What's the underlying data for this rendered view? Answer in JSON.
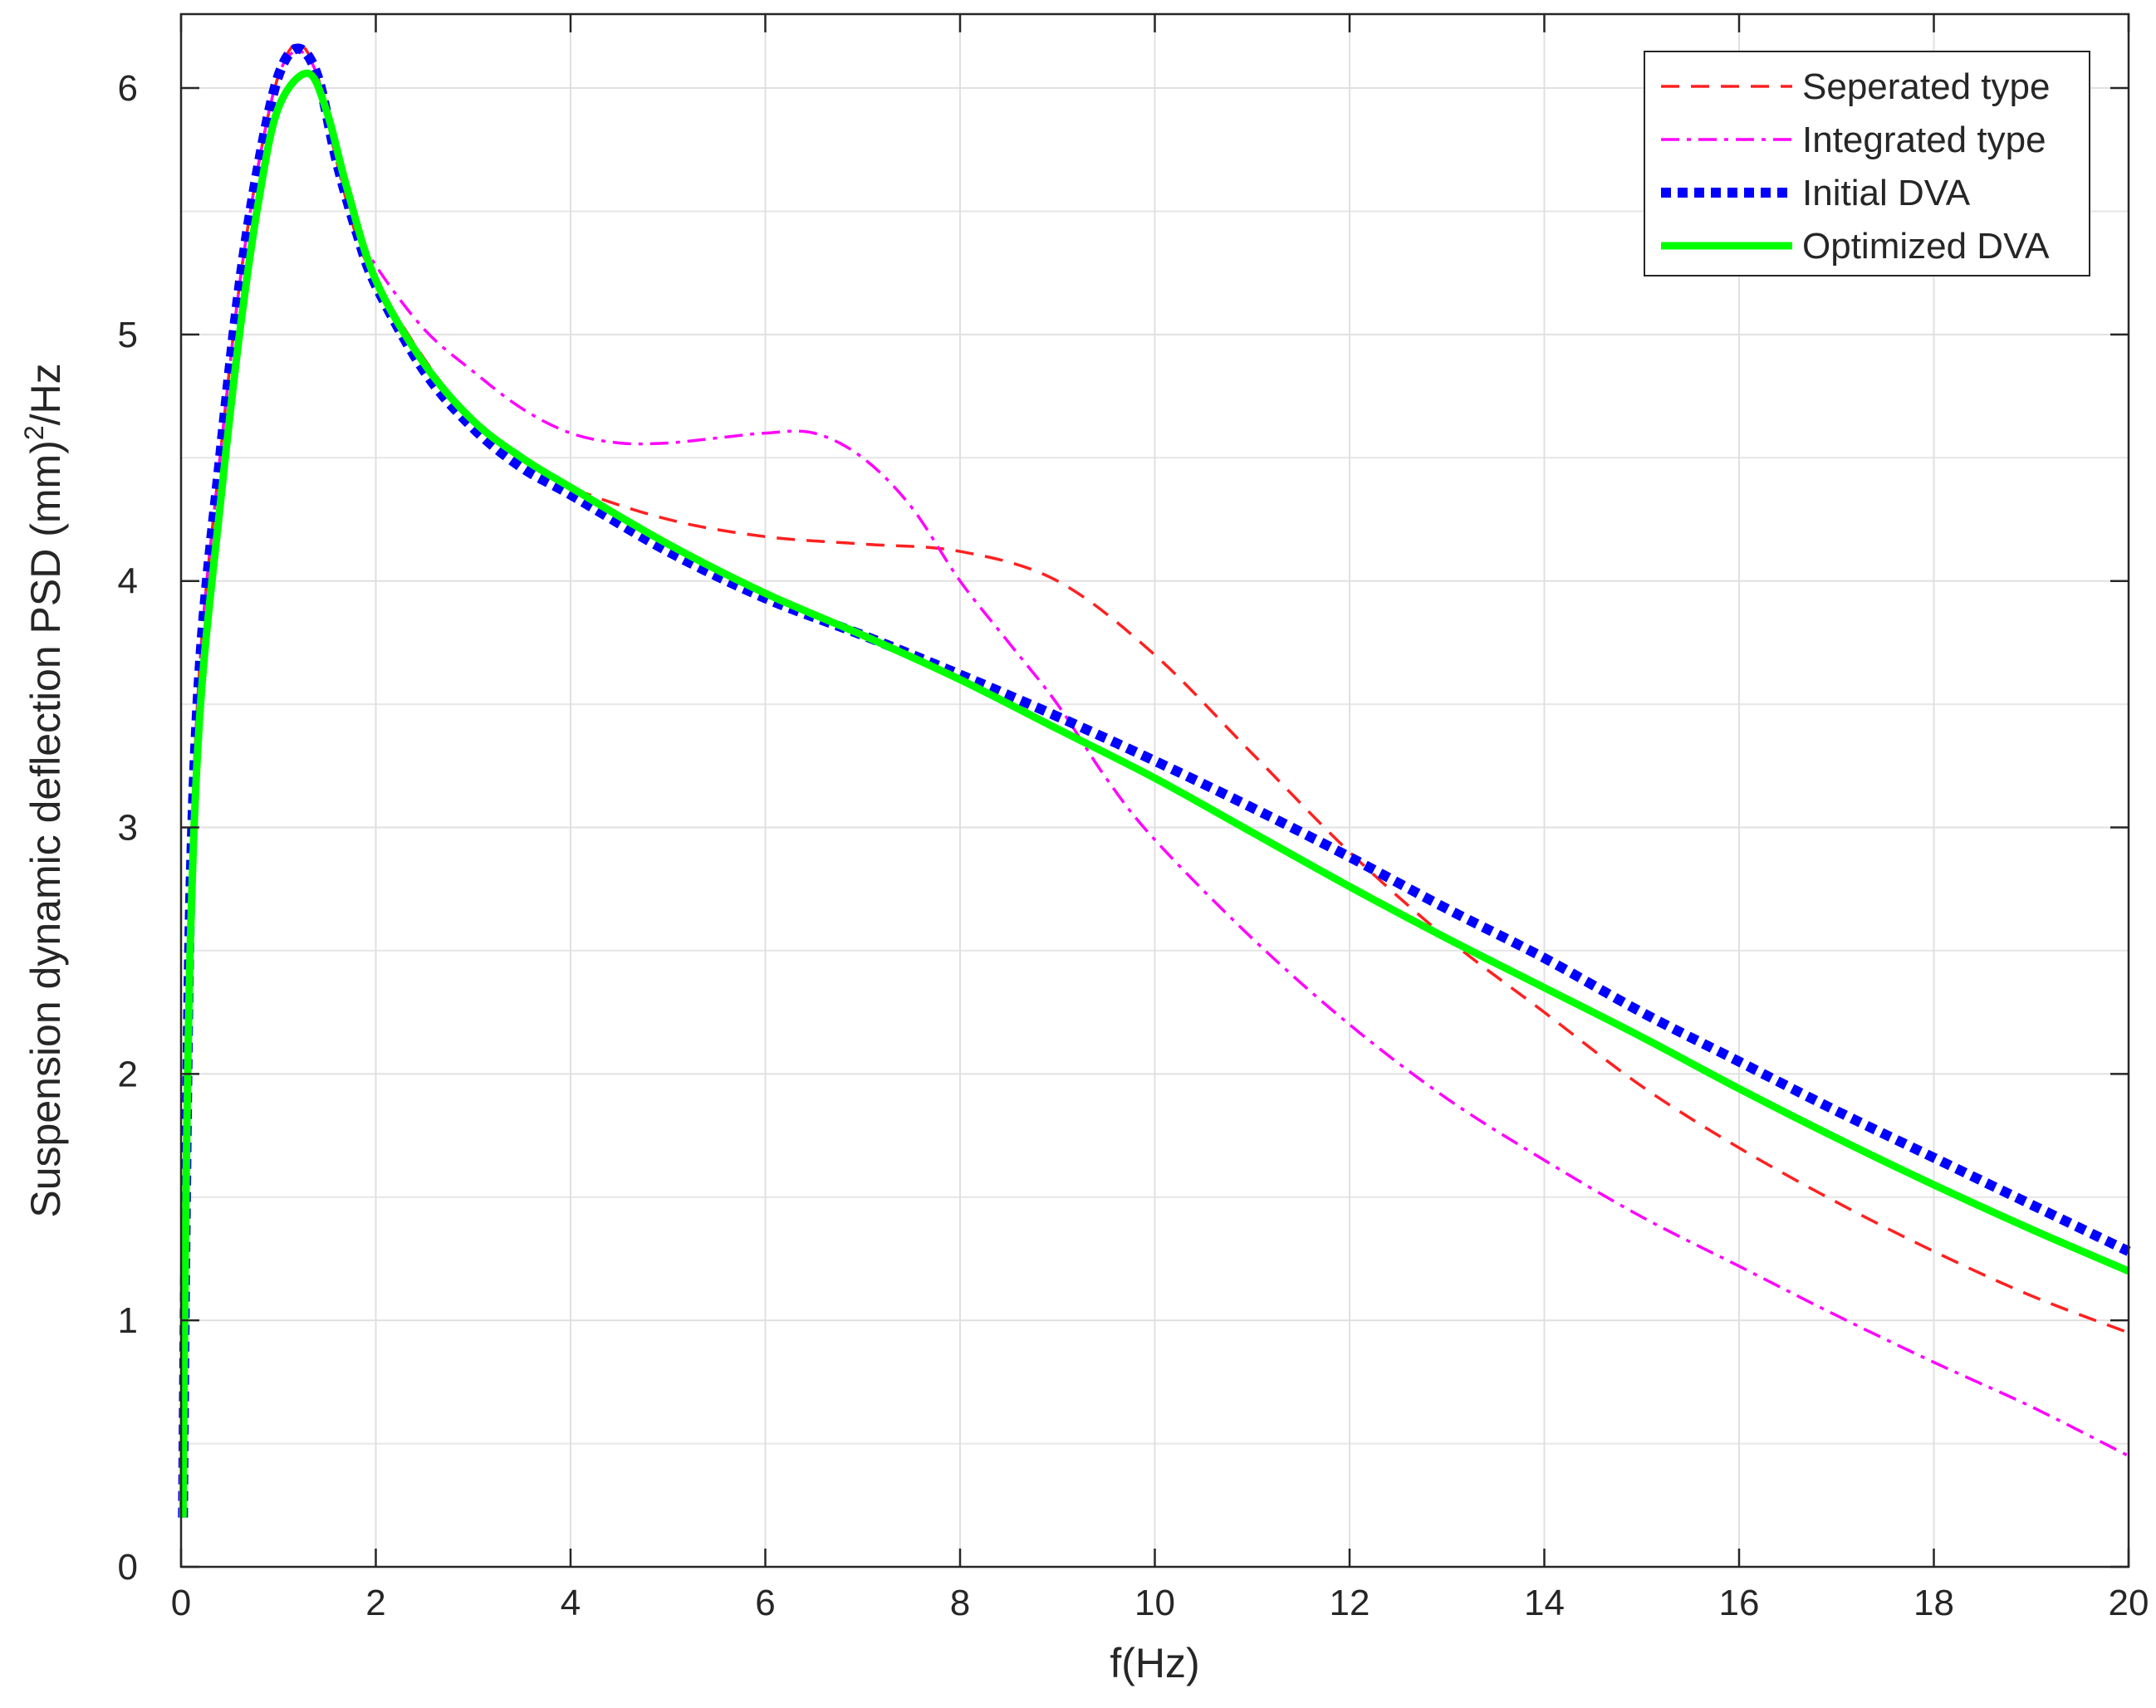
{
  "chart_data": {
    "type": "line",
    "title": "",
    "xlabel": "f(Hz)",
    "ylabel_main": "Suspension dynamic deflection PSD (mm)",
    "ylabel_sup": "2",
    "ylabel_tail": "/Hz",
    "xlim": [
      0,
      20
    ],
    "ylim": [
      0,
      6.3
    ],
    "xticks": [
      0,
      2,
      4,
      6,
      8,
      10,
      12,
      14,
      16,
      18,
      20
    ],
    "yticks": [
      0,
      1,
      2,
      3,
      4,
      5,
      6
    ],
    "grid": true,
    "legend_position": "top-right",
    "series": [
      {
        "name": "Seperated type",
        "color": "#ff2020",
        "style": "dashed",
        "points": [
          [
            0.02,
            0.2
          ],
          [
            0.05,
            1.5
          ],
          [
            0.1,
            2.8
          ],
          [
            0.2,
            3.7
          ],
          [
            0.4,
            4.5
          ],
          [
            0.6,
            5.2
          ],
          [
            0.8,
            5.7
          ],
          [
            1.0,
            6.05
          ],
          [
            1.2,
            6.18
          ],
          [
            1.4,
            6.05
          ],
          [
            1.6,
            5.7
          ],
          [
            1.8,
            5.4
          ],
          [
            2.0,
            5.22
          ],
          [
            2.5,
            4.9
          ],
          [
            3.0,
            4.65
          ],
          [
            3.5,
            4.5
          ],
          [
            4.0,
            4.38
          ],
          [
            5.0,
            4.25
          ],
          [
            6.0,
            4.18
          ],
          [
            7.0,
            4.15
          ],
          [
            8.0,
            4.12
          ],
          [
            9.0,
            4.0
          ],
          [
            10.0,
            3.7
          ],
          [
            11.0,
            3.3
          ],
          [
            12.0,
            2.9
          ],
          [
            13.0,
            2.55
          ],
          [
            14.0,
            2.25
          ],
          [
            15.0,
            1.95
          ],
          [
            16.0,
            1.7
          ],
          [
            17.0,
            1.48
          ],
          [
            18.0,
            1.28
          ],
          [
            19.0,
            1.1
          ],
          [
            20.0,
            0.95
          ]
        ]
      },
      {
        "name": "Integrated type",
        "color": "#ff00ff",
        "style": "dash-dot",
        "points": [
          [
            0.02,
            0.2
          ],
          [
            0.05,
            1.5
          ],
          [
            0.1,
            2.8
          ],
          [
            0.2,
            3.7
          ],
          [
            0.4,
            4.5
          ],
          [
            0.6,
            5.2
          ],
          [
            0.8,
            5.7
          ],
          [
            1.0,
            6.05
          ],
          [
            1.2,
            6.15
          ],
          [
            1.4,
            6.05
          ],
          [
            1.6,
            5.7
          ],
          [
            1.8,
            5.45
          ],
          [
            2.0,
            5.28
          ],
          [
            2.5,
            5.02
          ],
          [
            3.0,
            4.85
          ],
          [
            3.5,
            4.7
          ],
          [
            4.0,
            4.6
          ],
          [
            4.5,
            4.56
          ],
          [
            5.0,
            4.56
          ],
          [
            5.5,
            4.58
          ],
          [
            6.0,
            4.6
          ],
          [
            6.5,
            4.6
          ],
          [
            7.0,
            4.5
          ],
          [
            7.5,
            4.3
          ],
          [
            8.0,
            4.0
          ],
          [
            8.5,
            3.75
          ],
          [
            9.0,
            3.5
          ],
          [
            9.5,
            3.2
          ],
          [
            10.0,
            2.95
          ],
          [
            11.0,
            2.55
          ],
          [
            12.0,
            2.2
          ],
          [
            13.0,
            1.9
          ],
          [
            14.0,
            1.65
          ],
          [
            15.0,
            1.42
          ],
          [
            16.0,
            1.22
          ],
          [
            17.0,
            1.02
          ],
          [
            18.0,
            0.83
          ],
          [
            19.0,
            0.65
          ],
          [
            20.0,
            0.45
          ]
        ]
      },
      {
        "name": "Initial DVA",
        "color": "#0000ff",
        "style": "dotted-thick",
        "points": [
          [
            0.02,
            0.2
          ],
          [
            0.05,
            1.5
          ],
          [
            0.1,
            2.8
          ],
          [
            0.2,
            3.7
          ],
          [
            0.4,
            4.5
          ],
          [
            0.6,
            5.2
          ],
          [
            0.8,
            5.7
          ],
          [
            1.0,
            6.05
          ],
          [
            1.2,
            6.16
          ],
          [
            1.4,
            6.05
          ],
          [
            1.6,
            5.7
          ],
          [
            1.8,
            5.42
          ],
          [
            2.0,
            5.2
          ],
          [
            2.5,
            4.85
          ],
          [
            3.0,
            4.62
          ],
          [
            3.5,
            4.46
          ],
          [
            4.0,
            4.35
          ],
          [
            5.0,
            4.12
          ],
          [
            6.0,
            3.93
          ],
          [
            7.0,
            3.78
          ],
          [
            8.0,
            3.62
          ],
          [
            9.0,
            3.45
          ],
          [
            10.0,
            3.27
          ],
          [
            11.0,
            3.08
          ],
          [
            12.0,
            2.88
          ],
          [
            13.0,
            2.67
          ],
          [
            14.0,
            2.47
          ],
          [
            15.0,
            2.25
          ],
          [
            16.0,
            2.05
          ],
          [
            17.0,
            1.85
          ],
          [
            18.0,
            1.66
          ],
          [
            19.0,
            1.47
          ],
          [
            20.0,
            1.28
          ]
        ]
      },
      {
        "name": "Optimized DVA",
        "color": "#00ff00",
        "style": "solid-thick",
        "points": [
          [
            0.02,
            0.2
          ],
          [
            0.05,
            1.5
          ],
          [
            0.1,
            2.6
          ],
          [
            0.2,
            3.5
          ],
          [
            0.4,
            4.3
          ],
          [
            0.6,
            5.0
          ],
          [
            0.8,
            5.55
          ],
          [
            1.0,
            5.92
          ],
          [
            1.3,
            6.06
          ],
          [
            1.5,
            5.9
          ],
          [
            1.7,
            5.6
          ],
          [
            2.0,
            5.22
          ],
          [
            2.5,
            4.88
          ],
          [
            3.0,
            4.65
          ],
          [
            3.5,
            4.5
          ],
          [
            4.0,
            4.38
          ],
          [
            5.0,
            4.15
          ],
          [
            6.0,
            3.95
          ],
          [
            7.0,
            3.78
          ],
          [
            8.0,
            3.6
          ],
          [
            9.0,
            3.4
          ],
          [
            10.0,
            3.2
          ],
          [
            11.0,
            2.98
          ],
          [
            12.0,
            2.76
          ],
          [
            13.0,
            2.55
          ],
          [
            14.0,
            2.35
          ],
          [
            15.0,
            2.15
          ],
          [
            16.0,
            1.94
          ],
          [
            17.0,
            1.74
          ],
          [
            18.0,
            1.55
          ],
          [
            19.0,
            1.37
          ],
          [
            20.0,
            1.2
          ]
        ]
      }
    ]
  }
}
